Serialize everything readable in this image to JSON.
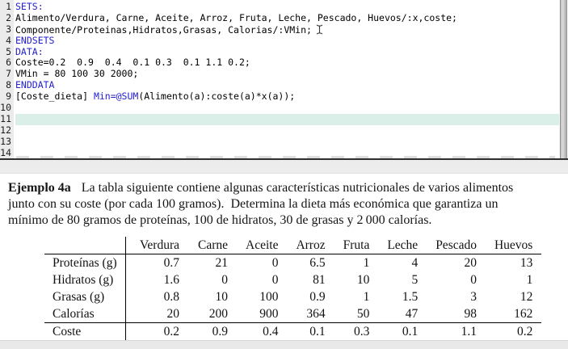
{
  "editor": {
    "colors": {
      "keyword_blue": "#2420cf",
      "highlight_mint": "#d9efe7"
    },
    "highlighted_line": 11,
    "lines": [
      {
        "num": 1,
        "segments": [
          {
            "t": "SETS:",
            "c": "kw"
          }
        ]
      },
      {
        "num": 2,
        "segments": [
          {
            "t": "Alimento/Verdura, Carne, Aceite, Arroz, Fruta, Leche, Pescado, Huevos/:x,coste;",
            "c": "plain"
          }
        ]
      },
      {
        "num": 3,
        "segments": [
          {
            "t": "Componente/Proteinas,Hidratos,Grasas, Calorias/:VMin;",
            "c": "plain"
          }
        ],
        "cursor_after": true
      },
      {
        "num": 4,
        "segments": [
          {
            "t": "ENDSETS",
            "c": "kw"
          }
        ]
      },
      {
        "num": 5,
        "segments": [
          {
            "t": "DATA:",
            "c": "kw"
          }
        ]
      },
      {
        "num": 6,
        "segments": [
          {
            "t": "Coste=0.2  0.9  0.4  0.1 0.3  0.1 1.1 0.2;",
            "c": "plain"
          }
        ]
      },
      {
        "num": 7,
        "segments": [
          {
            "t": "VMin = 80 100 30 2000;",
            "c": "plain"
          }
        ]
      },
      {
        "num": 8,
        "segments": [
          {
            "t": "ENDDATA",
            "c": "kw"
          }
        ]
      },
      {
        "num": 9,
        "segments": [
          {
            "t": "[Coste_dieta] ",
            "c": "plain"
          },
          {
            "t": "Min=@SUM",
            "c": "kw"
          },
          {
            "t": "(Alimento(a):coste(a)*x(a));",
            "c": "plain"
          }
        ]
      },
      {
        "num": 10,
        "segments": []
      },
      {
        "num": 11,
        "segments": [],
        "highlight": true
      },
      {
        "num": 12,
        "segments": []
      },
      {
        "num": 13,
        "segments": []
      },
      {
        "num": 14,
        "segments": []
      }
    ]
  },
  "document": {
    "example_label": "Ejemplo 4a",
    "paragraph": {
      "line1": "La tabla siguiente contiene algunas características nutricionales de varios alimentos",
      "line2": "junto con su coste (por cada 100 gramos).  Determina la dieta más económica que garantiza un",
      "line3": "mínimo de 80 gramos de proteínas, 100 de hidratos, 30 de grasas y 2 000 calorías."
    },
    "table": {
      "columns": [
        "Verdura",
        "Carne",
        "Aceite",
        "Arroz",
        "Fruta",
        "Leche",
        "Pescado",
        "Huevos"
      ],
      "rows": [
        {
          "label": "Proteínas (g)",
          "values": [
            "0.7",
            "21",
            "0",
            "6.5",
            "1",
            "4",
            "20",
            "13"
          ]
        },
        {
          "label": "Hidratos (g)",
          "values": [
            "1.6",
            "0",
            "0",
            "81",
            "10",
            "5",
            "0",
            "1"
          ]
        },
        {
          "label": "Grasas (g)",
          "values": [
            "0.8",
            "10",
            "100",
            "0.9",
            "1",
            "1.5",
            "3",
            "12"
          ]
        },
        {
          "label": "Calorías",
          "values": [
            "20",
            "200",
            "900",
            "364",
            "50",
            "47",
            "98",
            "162"
          ]
        },
        {
          "label": "Coste",
          "values": [
            "0.2",
            "0.9",
            "0.4",
            "0.1",
            "0.3",
            "0.1",
            "1.1",
            "0.2"
          ],
          "rule_above": true
        }
      ]
    }
  }
}
